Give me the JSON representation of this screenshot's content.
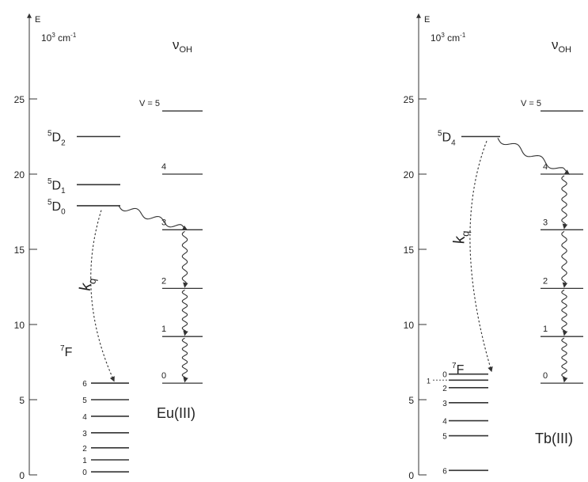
{
  "accent": {
    "eu_emitting": "#e01818",
    "tb_emitting": "#1fa53a",
    "line": "#333333"
  },
  "panels": [
    {
      "id": "eu",
      "axis_label": "E",
      "units_base": "10",
      "units_exp": "3",
      "units_rest": " cm",
      "units_rest_exp": "-1",
      "nu_symbol": "ν",
      "nu_sub": "OH",
      "ticks": [
        {
          "value": 0,
          "label": "0"
        },
        {
          "value": 5,
          "label": "5"
        },
        {
          "value": 10,
          "label": "10"
        },
        {
          "value": 15,
          "label": "15"
        },
        {
          "value": 20,
          "label": "20"
        },
        {
          "value": 25,
          "label": "25"
        }
      ],
      "excited_levels": [
        {
          "energy": 22.5,
          "sup": "5",
          "main": "D",
          "sub": "2"
        },
        {
          "energy": 19.3,
          "sup": "5",
          "main": "D",
          "sub": "1"
        },
        {
          "energy": 17.9,
          "sup": "5",
          "main": "D",
          "sub": "0",
          "emitting": true
        }
      ],
      "ground_term": {
        "sup": "7",
        "main": "F"
      },
      "ground_levels": [
        {
          "energy": 6.1,
          "label": "6"
        },
        {
          "energy": 5.0,
          "label": "5"
        },
        {
          "energy": 3.9,
          "label": "4"
        },
        {
          "energy": 2.8,
          "label": "3"
        },
        {
          "energy": 1.8,
          "label": "2"
        },
        {
          "energy": 1.0,
          "label": "1"
        },
        {
          "energy": 0.2,
          "label": "0"
        }
      ],
      "vib_levels": [
        {
          "v": 0,
          "energy": 6.1,
          "label": "0"
        },
        {
          "v": 1,
          "energy": 9.2,
          "label": "1"
        },
        {
          "v": 2,
          "energy": 12.4,
          "label": "2"
        },
        {
          "v": 3,
          "energy": 16.3,
          "label": "3"
        },
        {
          "v": 4,
          "energy": 20.0,
          "label": "4"
        },
        {
          "v": 5,
          "energy": 24.2,
          "label": "V = 5"
        }
      ],
      "kq_label": "k",
      "kq_sub": "q",
      "ion_label": "Eu(III)"
    },
    {
      "id": "tb",
      "axis_label": "E",
      "units_base": "10",
      "units_exp": "3",
      "units_rest": " cm",
      "units_rest_exp": "-1",
      "nu_symbol": "ν",
      "nu_sub": "OH",
      "ticks": [
        {
          "value": 0,
          "label": "0"
        },
        {
          "value": 5,
          "label": "5"
        },
        {
          "value": 10,
          "label": "10"
        },
        {
          "value": 15,
          "label": "15"
        },
        {
          "value": 20,
          "label": "20"
        },
        {
          "value": 25,
          "label": "25"
        }
      ],
      "excited_levels": [
        {
          "energy": 22.5,
          "sup": "5",
          "main": "D",
          "sub": "4",
          "emitting": true
        }
      ],
      "ground_term": {
        "sup": "7",
        "main": "F"
      },
      "ground_levels": [
        {
          "energy": 6.7,
          "label": "0"
        },
        {
          "energy": 6.3,
          "label": "1",
          "leader": true
        },
        {
          "energy": 5.8,
          "label": "2"
        },
        {
          "energy": 4.8,
          "label": "3"
        },
        {
          "energy": 3.6,
          "label": "4"
        },
        {
          "energy": 2.6,
          "label": "5"
        },
        {
          "energy": 0.3,
          "label": "6"
        }
      ],
      "vib_levels": [
        {
          "v": 0,
          "energy": 6.1,
          "label": "0"
        },
        {
          "v": 1,
          "energy": 9.2,
          "label": "1"
        },
        {
          "v": 2,
          "energy": 12.4,
          "label": "2"
        },
        {
          "v": 3,
          "energy": 16.3,
          "label": "3"
        },
        {
          "v": 4,
          "energy": 20.0,
          "label": "4"
        },
        {
          "v": 5,
          "energy": 24.2,
          "label": "V = 5"
        }
      ],
      "kq_label": "k",
      "kq_sub": "q",
      "ion_label": "Tb(III)"
    }
  ]
}
